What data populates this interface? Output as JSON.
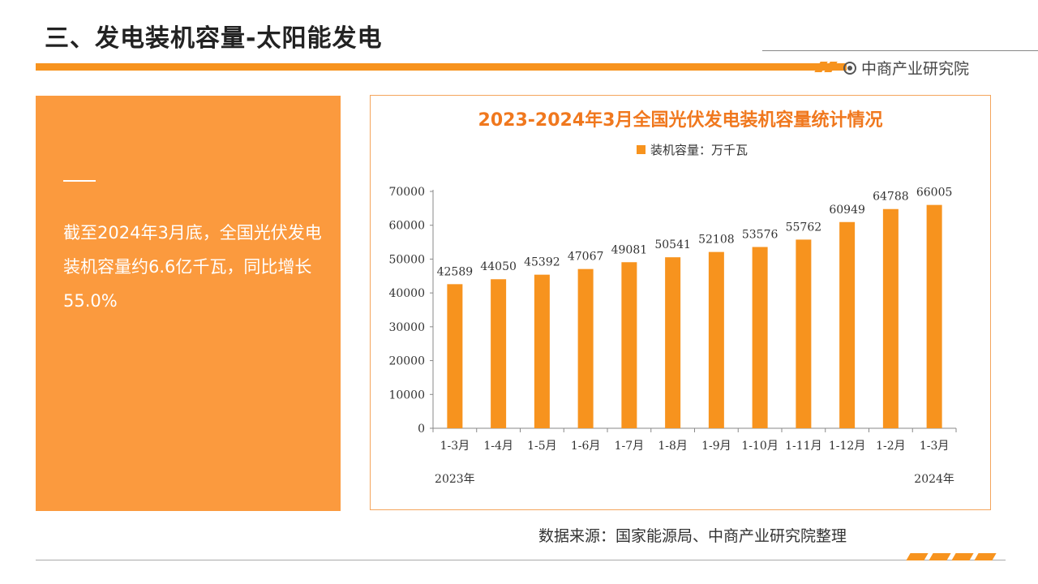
{
  "page": {
    "title": "三、发电装机容量-太阳能发电",
    "brand": "中商产业研究院",
    "source": "数据来源：国家能源局、中商产业研究院整理"
  },
  "panel": {
    "text": "截至2024年3月底，全国光伏发电装机容量约6.6亿千瓦，同比增长55.0%"
  },
  "colors": {
    "accent": "#f7931e",
    "panel": "#fb9a3e",
    "title": "#f0781e"
  },
  "chart_data": {
    "type": "bar",
    "title": "2023-2024年3月全国光伏发电装机容量统计情况",
    "legend": "装机容量：万千瓦",
    "legend_position": "top-center",
    "grid": false,
    "categories": [
      "1-3月",
      "1-4月",
      "1-5月",
      "1-6月",
      "1-7月",
      "1-8月",
      "1-9月",
      "1-10月",
      "1-11月",
      "1-12月",
      "1-2月",
      "1-3月"
    ],
    "series": [
      {
        "name": "装机容量：万千瓦",
        "values": [
          42589,
          44050,
          45392,
          47067,
          49081,
          50541,
          52108,
          53576,
          55762,
          60949,
          64788,
          66005
        ]
      }
    ],
    "ylim": [
      0,
      70000
    ],
    "yticks": [
      "0",
      "10000",
      "20000",
      "30000",
      "40000",
      "50000",
      "60000",
      "70000"
    ],
    "year_labels": [
      "2023年",
      "2024年"
    ]
  }
}
